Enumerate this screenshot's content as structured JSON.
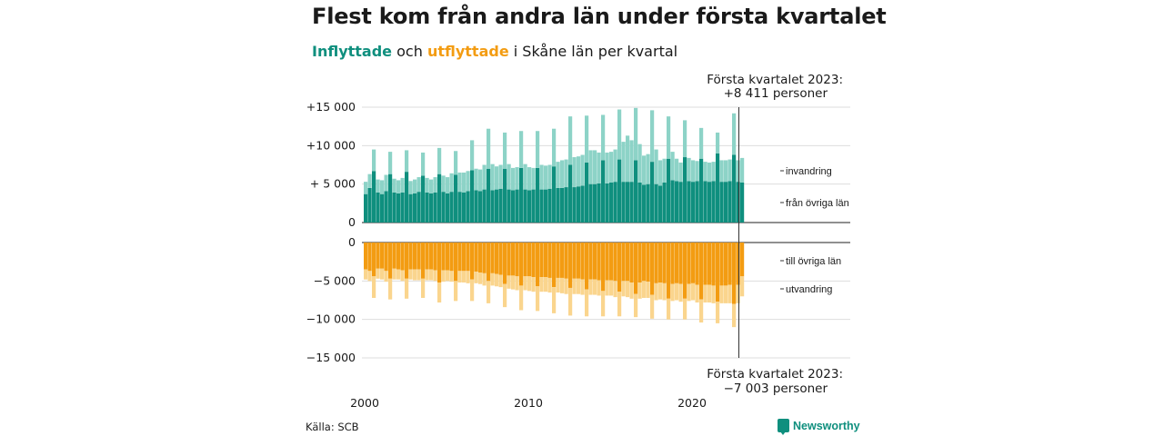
{
  "title": "Flest kom från andra län under första kvartalet",
  "subtitle": {
    "part1": "Inflyttade",
    "part2": " och ",
    "part3": "utflyttade",
    "part4": " i Skåne län per kvartal"
  },
  "source": "Källa: SCB",
  "brand": "Newsworthy",
  "colors": {
    "in_dark": "#0f8f7e",
    "in_light": "#8dd3c7",
    "out_dark": "#f39c12",
    "out_light": "#fad58e"
  },
  "chart_data": {
    "type": "bar",
    "stacked": true,
    "x_start": "2000 Q1",
    "x_end": "2023 Q1",
    "x_ticks": [
      "2000",
      "2010",
      "2020"
    ],
    "y_ticks_top": [
      "+15 000",
      "+10 000",
      "+ 5 000",
      "0"
    ],
    "y_ticks_bottom": [
      "0",
      "−5 000",
      "−10 000",
      "−15 000"
    ],
    "ylim_top": [
      0,
      15000
    ],
    "ylim_bottom": [
      -15000,
      0
    ],
    "series_labels": {
      "in_light": "invandring",
      "in_dark": "från övriga län",
      "out_dark": "till övriga län",
      "out_light": "utvandring"
    },
    "annotation_top": {
      "line1": "Första kvartalet 2023:",
      "line2": "+8 411 personer"
    },
    "annotation_bottom": {
      "line1": "Första kvartalet 2023:",
      "line2": "−7 003 personer"
    },
    "from_other_counties": [
      3700,
      4500,
      6700,
      3900,
      3700,
      4100,
      6300,
      3900,
      3800,
      3900,
      6600,
      3700,
      3800,
      4000,
      6100,
      3900,
      3800,
      3900,
      6300,
      4000,
      3800,
      4000,
      6200,
      4000,
      3900,
      4100,
      6800,
      4200,
      4100,
      4300,
      7000,
      4200,
      4300,
      4400,
      7000,
      4300,
      4200,
      4300,
      7100,
      4300,
      4200,
      4300,
      7100,
      4300,
      4300,
      4400,
      7300,
      4500,
      4500,
      4600,
      7500,
      4600,
      4700,
      4800,
      7800,
      5000,
      5000,
      5100,
      8100,
      5100,
      5200,
      5300,
      8200,
      5300,
      5300,
      5300,
      8100,
      5200,
      4900,
      5000,
      7900,
      5000,
      4800,
      5200,
      8300,
      5500,
      5400,
      5300,
      8500,
      5400,
      5300,
      5400,
      8300,
      5400,
      5300,
      5400,
      9000,
      5300,
      5300,
      5400,
      8800,
      5300,
      5200
    ],
    "immigration": [
      1600,
      1800,
      2800,
      1700,
      1800,
      2100,
      2900,
      1800,
      1700,
      1900,
      2800,
      1700,
      1800,
      1900,
      3000,
      1900,
      1800,
      2000,
      3400,
      2100,
      2100,
      2400,
      3100,
      2500,
      2600,
      2600,
      3900,
      2800,
      2800,
      3200,
      5200,
      3400,
      3000,
      3100,
      4700,
      3300,
      2900,
      2900,
      4800,
      3300,
      3000,
      2800,
      4800,
      3200,
      3100,
      3100,
      4900,
      3400,
      3600,
      3600,
      6300,
      3900,
      3900,
      4000,
      6100,
      4400,
      4400,
      4000,
      5900,
      4000,
      4000,
      4200,
      6500,
      5200,
      6000,
      5400,
      6800,
      5000,
      3800,
      3900,
      6700,
      4500,
      3300,
      3100,
      5500,
      3700,
      2900,
      2500,
      4800,
      3000,
      2800,
      2600,
      4000,
      2500,
      2500,
      2500,
      2700,
      2800,
      2800,
      2800,
      5400,
      2800,
      3200
    ],
    "to_other_counties": [
      3500,
      3700,
      4400,
      3400,
      3400,
      3700,
      4700,
      3400,
      3500,
      3600,
      4700,
      3500,
      3500,
      3500,
      4700,
      3500,
      3500,
      3600,
      5200,
      3600,
      3600,
      3700,
      5000,
      3700,
      3700,
      3700,
      4800,
      3800,
      3900,
      4000,
      5000,
      4000,
      4100,
      4200,
      5400,
      4300,
      4300,
      4400,
      5600,
      4400,
      4400,
      4500,
      5700,
      4500,
      4500,
      4600,
      5800,
      4600,
      4600,
      4700,
      5900,
      4700,
      4700,
      4800,
      6100,
      4800,
      4800,
      4900,
      6300,
      4900,
      4900,
      5000,
      6400,
      5000,
      5000,
      5200,
      6700,
      5200,
      5000,
      5100,
      6800,
      5300,
      5200,
      5300,
      7300,
      5400,
      5300,
      5400,
      7300,
      5400,
      5300,
      5500,
      7400,
      5500,
      5500,
      5600,
      7700,
      5600,
      5600,
      5500,
      8000,
      5500,
      4400
    ],
    "emigration": [
      1300,
      1300,
      2800,
      1300,
      1400,
      1400,
      2700,
      1400,
      1300,
      1400,
      2600,
      1300,
      1400,
      1400,
      2500,
      1400,
      1400,
      1400,
      2600,
      1500,
      1400,
      1400,
      2600,
      1500,
      1500,
      1600,
      2800,
      1500,
      1500,
      1600,
      2900,
      1600,
      1600,
      1600,
      3000,
      1700,
      1800,
      1800,
      3200,
      1800,
      1900,
      1900,
      3200,
      1900,
      1900,
      1900,
      3400,
      1900,
      2000,
      2000,
      3600,
      2000,
      2000,
      2000,
      3500,
      2000,
      2000,
      2000,
      3300,
      2000,
      2000,
      2100,
      3200,
      2000,
      2100,
      2100,
      3000,
      2100,
      2200,
      2100,
      3100,
      2200,
      2200,
      2200,
      2700,
      2200,
      2200,
      2300,
      2700,
      2200,
      2200,
      2300,
      3000,
      2300,
      2300,
      2300,
      2800,
      2300,
      2300,
      2400,
      3000,
      2400,
      2600
    ]
  }
}
